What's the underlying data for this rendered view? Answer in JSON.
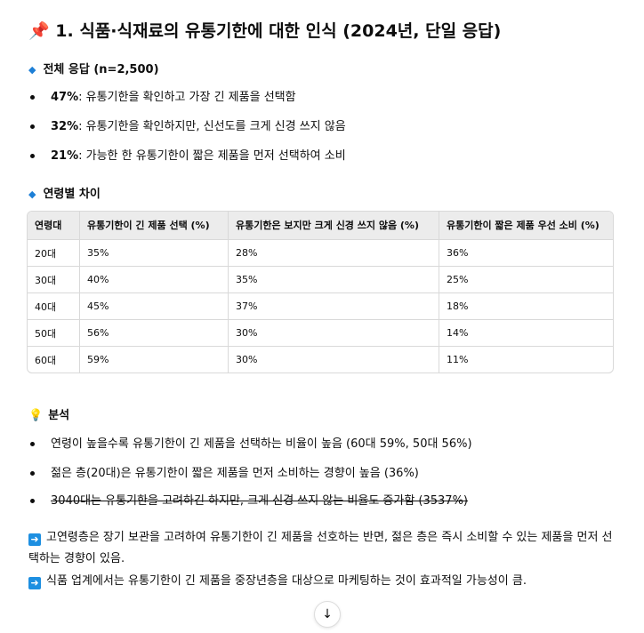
{
  "title": {
    "icon": "📌",
    "text": "1. 식품·식재료의 유통기한에 대한 인식 (2024년, 단일 응답)"
  },
  "overall": {
    "heading": "전체 응답 (n=2,500)",
    "items": [
      {
        "pct": "47%",
        "text": ": 유통기한을 확인하고 가장 긴 제품을 선택함"
      },
      {
        "pct": "32%",
        "text": ": 유통기한을 확인하지만, 신선도를 크게 신경 쓰지 않음"
      },
      {
        "pct": "21%",
        "text": ": 가능한 한 유통기한이 짧은 제품을 먼저 선택하여 소비"
      }
    ]
  },
  "age": {
    "heading": "연령별 차이",
    "headers": [
      "연령대",
      "유통기한이 긴 제품 선택 (%)",
      "유통기한은 보지만 크게 신경 쓰지 않음 (%)",
      "유통기한이 짧은 제품 우선 소비 (%)"
    ],
    "rows": [
      [
        "20대",
        "35%",
        "28%",
        "36%"
      ],
      [
        "30대",
        "40%",
        "35%",
        "25%"
      ],
      [
        "40대",
        "45%",
        "37%",
        "18%"
      ],
      [
        "50대",
        "56%",
        "30%",
        "14%"
      ],
      [
        "60대",
        "59%",
        "30%",
        "11%"
      ]
    ]
  },
  "analysis": {
    "icon": "💡",
    "heading": "분석",
    "items": [
      "연령이 높을수록 유통기한이 긴 제품을 선택하는 비율이 높음 (60대 59%, 50대 56%)",
      "젊은 층(20대)은 유통기한이 짧은 제품을 먼저 소비하는 경향이 높음 (36%)",
      "3040대는 유통기한을 고려하긴 하지만, 크게 신경 쓰지 않는 비율도 증가함 (3537%)"
    ]
  },
  "conclusions": [
    "고연령층은 장기 보관을 고려하여 유통기한이 긴 제품을 선호하는 반면, 젊은 층은 즉시 소비할 수 있는 제품을 먼저 선택하는 경향이 있음.",
    "식품 업계에서는 유통기한이 긴 제품을 중장년층을 대상으로 마케팅하는 것이 효과적일 가능성이 큼."
  ],
  "accent": "#1d8fe1"
}
